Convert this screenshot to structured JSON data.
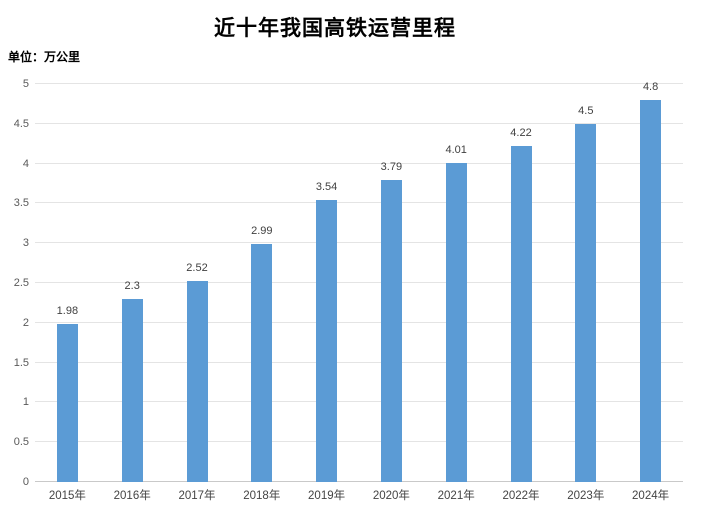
{
  "chart": {
    "title": "近十年我国高铁运营里程",
    "unit_label": "单位：万公里"
  },
  "chart_data": {
    "type": "bar",
    "title": "近十年我国高铁运营里程",
    "xlabel": "",
    "ylabel": "单位：万公里",
    "categories": [
      "2015年",
      "2016年",
      "2017年",
      "2018年",
      "2019年",
      "2020年",
      "2021年",
      "2022年",
      "2023年",
      "2024年"
    ],
    "values": [
      1.98,
      2.3,
      2.52,
      2.99,
      3.54,
      3.79,
      4.01,
      4.22,
      4.5,
      4.8
    ],
    "value_labels": [
      "1.98",
      "2.3",
      "2.52",
      "2.99",
      "3.54",
      "3.79",
      "4.01",
      "4.22",
      "4.5",
      "4.8"
    ],
    "ylim": [
      0,
      5
    ],
    "ytick_step": 0.5,
    "ytick_labels": [
      "0",
      "0.5",
      "1",
      "1.5",
      "2",
      "2.5",
      "3",
      "3.5",
      "4",
      "4.5",
      "5"
    ],
    "grid": true,
    "legend_position": "none",
    "colors": {
      "bar": "#5B9BD5",
      "gridline": "#e4e4e4",
      "axis_line": "#c9c9c9",
      "tick_label": "#595959",
      "data_label": "#404040",
      "title": "#000000"
    }
  }
}
